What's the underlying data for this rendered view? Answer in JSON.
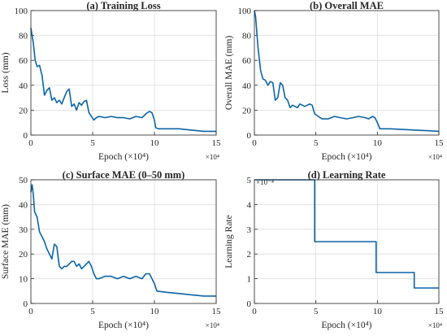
{
  "colors": {
    "line": "#0b64a6",
    "grid": "#dcdcdc",
    "axis": "#262626"
  },
  "chart_data": [
    {
      "type": "line",
      "title": "(a) Training Loss",
      "xlabel": "Epoch (×10⁴)",
      "x_exponent_label": "×10⁴",
      "ylabel": "Loss (mm)",
      "xlim": [
        0,
        15
      ],
      "ylim": [
        0,
        100
      ],
      "x_ticks": [
        "0",
        "5",
        "10",
        "15"
      ],
      "y_ticks": [
        "0",
        "20",
        "40",
        "60",
        "80",
        "100"
      ],
      "grid": true,
      "series": [
        {
          "x": [
            0,
            0.1,
            0.2,
            0.35,
            0.5,
            0.7,
            0.9,
            1.1,
            1.3,
            1.5,
            1.7,
            1.9,
            2.1,
            2.3,
            2.5,
            2.7,
            2.9,
            3.1,
            3.3,
            3.5,
            3.7,
            3.9,
            4.1,
            4.3,
            4.5,
            4.7,
            4.9,
            5.1,
            5.3,
            5.5,
            6,
            6.5,
            7,
            7.5,
            8,
            8.5,
            9,
            9.3,
            9.6,
            9.8,
            10,
            10.1,
            10.3,
            11,
            12,
            13,
            14,
            15
          ],
          "y": [
            86,
            80,
            74,
            60,
            55,
            56,
            48,
            32,
            36,
            38,
            28,
            30,
            26,
            28,
            25,
            30,
            35,
            37,
            23,
            25,
            20,
            26,
            24,
            27,
            28,
            18,
            15,
            12,
            14,
            15,
            14,
            15,
            14,
            14,
            13,
            15,
            14,
            17,
            19,
            18,
            12,
            6,
            5,
            5,
            5,
            4,
            3,
            3
          ]
        }
      ]
    },
    {
      "type": "line",
      "title": "(b) Overall MAE",
      "xlabel": "Epoch (×10⁴)",
      "x_exponent_label": "×10⁴",
      "ylabel": "Overall MAE (mm)",
      "xlim": [
        0,
        15
      ],
      "ylim": [
        0,
        100
      ],
      "x_ticks": [
        "0",
        "5",
        "10",
        "15"
      ],
      "y_ticks": [
        "0",
        "20",
        "40",
        "60",
        "80",
        "100"
      ],
      "grid": true,
      "series": [
        {
          "x": [
            0,
            0.1,
            0.3,
            0.5,
            0.7,
            0.9,
            1.1,
            1.3,
            1.5,
            1.7,
            1.9,
            2.1,
            2.3,
            2.5,
            2.7,
            2.9,
            3.1,
            3.3,
            3.5,
            3.7,
            3.9,
            4.1,
            4.3,
            4.5,
            4.7,
            4.9,
            5.2,
            5.5,
            6,
            6.5,
            7,
            7.5,
            8,
            8.5,
            9,
            9.3,
            9.6,
            9.8,
            10,
            10.2,
            11,
            12,
            13,
            14,
            15
          ],
          "y": [
            100,
            95,
            70,
            52,
            45,
            44,
            40,
            43,
            42,
            28,
            30,
            42,
            40,
            30,
            28,
            22,
            24,
            23,
            22,
            25,
            24,
            23,
            24,
            25,
            24,
            17,
            15,
            13,
            13,
            15,
            14,
            13,
            14,
            15,
            14,
            13,
            15,
            14,
            10,
            5,
            5,
            4.5,
            4,
            3.5,
            3
          ]
        }
      ]
    },
    {
      "type": "line",
      "title": "(c) Surface MAE (0–50 mm)",
      "xlabel": "Epoch (×10⁴)",
      "x_exponent_label": "×10⁴",
      "ylabel": "Surface MAE (mm)",
      "xlim": [
        0,
        15
      ],
      "ylim": [
        0,
        50
      ],
      "x_ticks": [
        "0",
        "5",
        "10",
        "15"
      ],
      "y_ticks": [
        "0",
        "10",
        "20",
        "30",
        "40",
        "50"
      ],
      "grid": true,
      "series": [
        {
          "x": [
            0,
            0.1,
            0.2,
            0.3,
            0.5,
            0.7,
            0.9,
            1.1,
            1.3,
            1.5,
            1.7,
            1.9,
            2.1,
            2.3,
            2.5,
            2.7,
            2.9,
            3.1,
            3.3,
            3.5,
            3.7,
            3.9,
            4.1,
            4.3,
            4.5,
            4.7,
            4.9,
            5.1,
            5.3,
            5.5,
            6,
            6.5,
            7,
            7.5,
            8,
            8.5,
            9,
            9.3,
            9.6,
            9.8,
            10,
            10.2,
            11,
            12,
            13,
            14,
            15
          ],
          "y": [
            45,
            48,
            44,
            37,
            35,
            29,
            27,
            25,
            22,
            20,
            18,
            24,
            23,
            15,
            14,
            15,
            15,
            16,
            17,
            17,
            15,
            16,
            14,
            15,
            16,
            17,
            15,
            12,
            10,
            10,
            11,
            11,
            10,
            11,
            10,
            11,
            10,
            12,
            12,
            10,
            8,
            5,
            4.5,
            4,
            3.5,
            3,
            3
          ]
        }
      ]
    },
    {
      "type": "line",
      "title": "(d) Learning Rate",
      "xlabel": "Epoch (×10⁴)",
      "x_exponent_label": "×10⁴",
      "ylabel": "Learning Rate",
      "y_exponent_label": "×10⁻⁴",
      "xlim": [
        0,
        15
      ],
      "ylim": [
        0,
        5
      ],
      "x_ticks": [
        "0",
        "5",
        "10",
        "15"
      ],
      "y_ticks": [
        "0",
        "1",
        "2",
        "3",
        "4",
        "5"
      ],
      "grid": true,
      "series": [
        {
          "x": [
            0,
            4.9,
            4.9,
            9.9,
            9.9,
            13,
            13,
            15
          ],
          "y": [
            5,
            5,
            2.5,
            2.5,
            1.25,
            1.25,
            0.625,
            0.625
          ]
        }
      ]
    }
  ]
}
